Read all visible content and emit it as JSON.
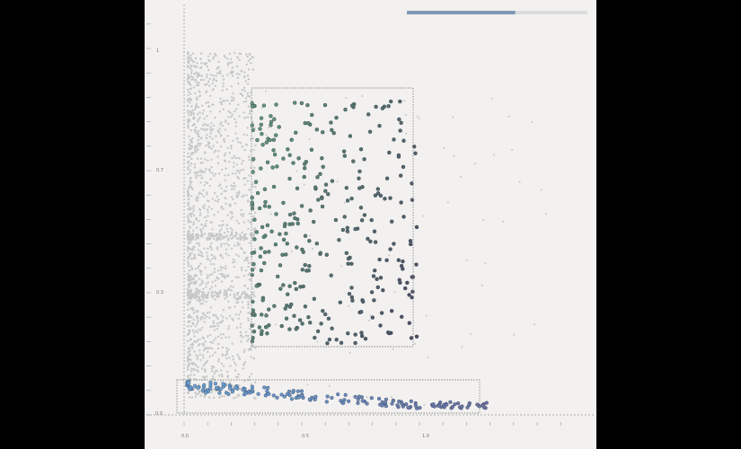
{
  "colors": {
    "background": "#f2f1f0",
    "frame": "#000000",
    "unselected_points": "#c7c7c7",
    "selected_points_start": "#5e9e7a",
    "selected_points_end": "#4a4a62",
    "bottom_selection_start": "#6aa7d9",
    "bottom_selection_end": "#6b6f9e",
    "selection_box": "#8a8a8a",
    "progress_fill": "#7f98b5",
    "progress_track": "#dcdcdc"
  },
  "progress": {
    "value": 0.6
  },
  "chart_data": {
    "type": "scatter",
    "title": "",
    "xlabel": "",
    "ylabel": "",
    "x_tick_labels": [
      "0.0",
      "0.5",
      "1.0"
    ],
    "y_tick_labels": [
      "1",
      "0.7",
      "0.3",
      "0.0"
    ],
    "xlim": [
      0,
      1.5
    ],
    "ylim": [
      0,
      1.17
    ],
    "grid": false,
    "legend": "none",
    "selections": [
      {
        "name": "",
        "x_range": [
          0.28,
          0.96
        ],
        "y_range": [
          0.22,
          0.97
        ]
      },
      {
        "name": "",
        "x_range": [
          0.0,
          1.25
        ],
        "y_range": [
          0.0,
          0.1
        ]
      }
    ],
    "series": [
      {
        "name": "",
        "role": "unselected",
        "count": 1600,
        "x_range": [
          0.0,
          0.28
        ],
        "y_range": [
          0.05,
          1.12
        ]
      },
      {
        "name": "",
        "role": "unselected-outliers",
        "count": 70,
        "x_range": [
          0.28,
          1.5
        ],
        "y_range": [
          0.0,
          1.0
        ]
      },
      {
        "name": "",
        "role": "selected-upper",
        "count": 330,
        "x_range": [
          0.28,
          0.96
        ],
        "y_range": [
          0.22,
          0.97
        ]
      },
      {
        "name": "",
        "role": "selected-lower",
        "count": 170,
        "x_range": [
          0.0,
          1.25
        ],
        "y_range": [
          0.02,
          0.09
        ]
      }
    ]
  }
}
